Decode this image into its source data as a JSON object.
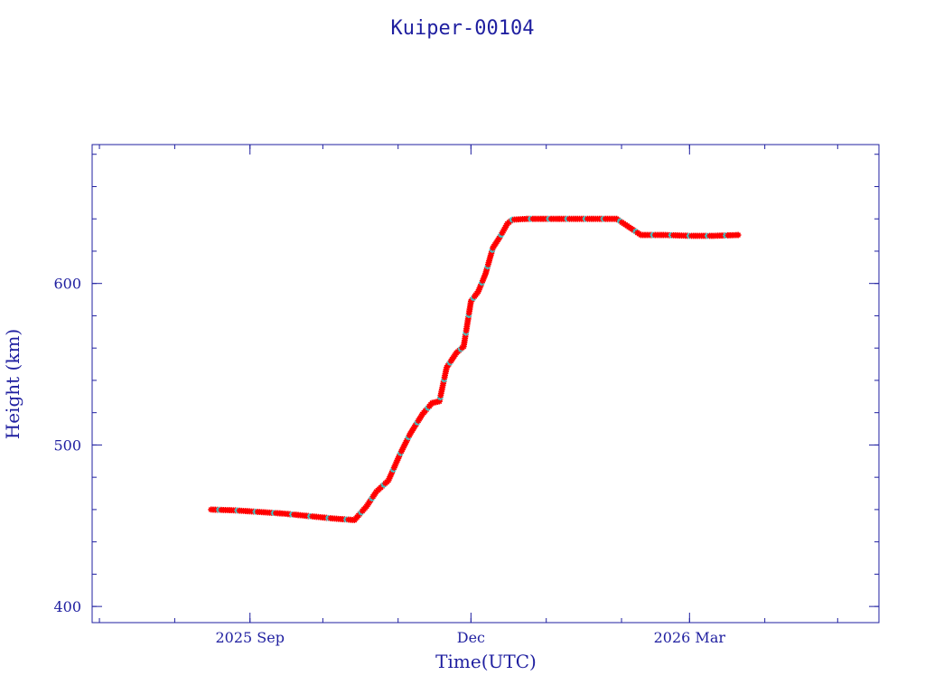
{
  "colors": {
    "axis": "#1f1fa0",
    "text": "#1f1fa0",
    "points": "#ff0000",
    "alt_points": "#30d0d0",
    "line": "#202060",
    "background": "#ffffff"
  },
  "chart_data": {
    "type": "scatter",
    "title": "Kuiper-00104",
    "xlabel": "Time(UTC)",
    "ylabel": "Height (km)",
    "x_type": "date",
    "xlim": [
      "2025-06-28",
      "2026-05-18"
    ],
    "ylim": [
      390,
      686
    ],
    "grid": false,
    "legend": "none",
    "x_ticks": [
      {
        "date": "2025-09-01",
        "label": "2025 Sep"
      },
      {
        "date": "2025-12-01",
        "label": "Dec"
      },
      {
        "date": "2026-03-01",
        "label": "2026 Mar"
      }
    ],
    "x_minor_ticks": [
      "2025-07-01",
      "2025-08-01",
      "2025-09-01",
      "2025-10-01",
      "2025-11-01",
      "2025-12-01",
      "2026-01-01",
      "2026-02-01",
      "2026-03-01",
      "2026-04-01",
      "2026-05-01"
    ],
    "y_ticks": [
      400,
      500,
      600
    ],
    "y_minor_ticks": [
      400,
      420,
      440,
      460,
      480,
      500,
      520,
      540,
      560,
      580,
      600,
      620,
      640,
      660,
      680
    ],
    "series": [
      {
        "marker": "asterisk",
        "color": "#ff0000",
        "x": [
          "2025-08-16",
          "2025-08-26",
          "2025-09-05",
          "2025-09-15",
          "2025-09-25",
          "2025-10-05",
          "2025-10-14",
          "2025-10-19",
          "2025-10-23",
          "2025-10-28",
          "2025-11-02",
          "2025-11-06",
          "2025-11-11",
          "2025-11-15",
          "2025-11-18",
          "2025-11-21",
          "2025-11-25",
          "2025-11-28",
          "2025-12-01",
          "2025-12-04",
          "2025-12-07",
          "2025-12-10",
          "2025-12-13",
          "2025-12-16",
          "2025-12-18",
          "2025-12-24",
          "2026-01-03",
          "2026-01-13",
          "2026-01-23",
          "2026-01-30",
          "2026-02-04",
          "2026-02-09",
          "2026-02-19",
          "2026-03-01",
          "2026-03-11",
          "2026-03-21"
        ],
        "y": [
          460,
          459.5,
          458.5,
          457.5,
          456,
          454.5,
          453.5,
          462,
          471,
          478,
          495,
          507,
          519,
          526,
          527,
          548,
          557,
          561,
          589,
          595,
          606,
          622,
          629,
          637,
          639.5,
          640,
          640,
          640,
          640,
          640,
          635,
          630,
          630,
          629.5,
          629.5,
          630
        ]
      }
    ]
  }
}
